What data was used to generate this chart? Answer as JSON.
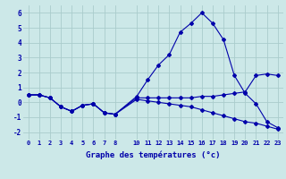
{
  "xlabel": "Graphe des températures (°c)",
  "background_color": "#cce8e8",
  "grid_color": "#aacccc",
  "line_color": "#0000aa",
  "x_ticks": [
    0,
    1,
    2,
    3,
    4,
    5,
    6,
    7,
    8,
    10,
    11,
    12,
    13,
    14,
    15,
    16,
    17,
    18,
    19,
    20,
    21,
    22,
    23
  ],
  "xlim": [
    -0.5,
    23.5
  ],
  "ylim": [
    -2.5,
    6.5
  ],
  "y_ticks": [
    -2,
    -1,
    0,
    1,
    2,
    3,
    4,
    5,
    6
  ],
  "series": {
    "top": {
      "x": [
        0,
        1,
        2,
        3,
        4,
        5,
        6,
        7,
        8,
        10,
        11,
        12,
        13,
        14,
        15,
        16,
        17,
        18,
        19,
        20,
        21,
        22,
        23
      ],
      "y": [
        0.5,
        0.5,
        0.3,
        -0.3,
        -0.6,
        -0.2,
        -0.1,
        -0.7,
        -0.8,
        0.4,
        1.5,
        2.5,
        3.2,
        4.7,
        5.3,
        6.0,
        5.3,
        4.2,
        1.8,
        0.6,
        -0.1,
        -1.3,
        -1.7
      ]
    },
    "mid": {
      "x": [
        0,
        1,
        2,
        3,
        4,
        5,
        6,
        7,
        8,
        10,
        11,
        12,
        13,
        14,
        15,
        16,
        17,
        18,
        19,
        20,
        21,
        22,
        23
      ],
      "y": [
        0.5,
        0.5,
        0.3,
        -0.3,
        -0.6,
        -0.2,
        -0.1,
        -0.7,
        -0.8,
        0.3,
        0.3,
        0.3,
        0.3,
        0.3,
        0.3,
        0.4,
        0.4,
        0.5,
        0.6,
        0.7,
        1.8,
        1.9,
        1.8
      ]
    },
    "bot": {
      "x": [
        0,
        1,
        2,
        3,
        4,
        5,
        6,
        7,
        8,
        10,
        11,
        12,
        13,
        14,
        15,
        16,
        17,
        18,
        19,
        20,
        21,
        22,
        23
      ],
      "y": [
        0.5,
        0.5,
        0.3,
        -0.3,
        -0.6,
        -0.2,
        -0.1,
        -0.7,
        -0.8,
        0.2,
        0.1,
        0.0,
        -0.1,
        -0.2,
        -0.3,
        -0.5,
        -0.7,
        -0.9,
        -1.1,
        -1.3,
        -1.4,
        -1.6,
        -1.8
      ]
    }
  }
}
